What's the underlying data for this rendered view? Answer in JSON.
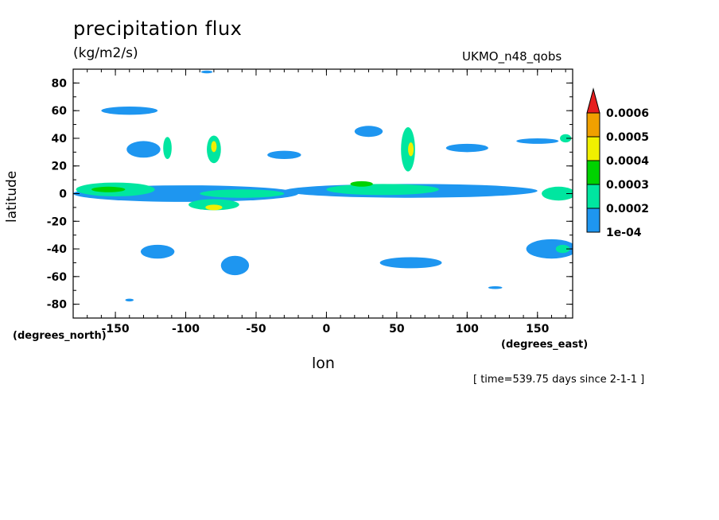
{
  "title": "precipitation flux",
  "units": "(kg/m2/s)",
  "model": "UKMO_n48_qobs",
  "y_axis": {
    "label": "latitude",
    "unit": "(degrees_north)"
  },
  "x_axis": {
    "label": "lon",
    "unit": "(degrees_east)"
  },
  "timestamp": "[ time=539.75 days since 2-1-1 ]",
  "chart_data": {
    "type": "heatmap",
    "xlim": [
      -180,
      175
    ],
    "ylim": [
      -90,
      90
    ],
    "x_ticks": [
      -150,
      -100,
      -50,
      0,
      50,
      100,
      150
    ],
    "y_ticks": [
      -80,
      -60,
      -40,
      -20,
      0,
      20,
      40,
      60,
      80
    ],
    "x_tick_labels": [
      "-150",
      "-100",
      "-50",
      "0",
      "50",
      "100",
      "150"
    ],
    "y_tick_labels": [
      "-80",
      "-60",
      "-40",
      "-20",
      "0",
      "20",
      "40",
      "60",
      "80"
    ],
    "colorbar": {
      "levels": [
        {
          "label": "1e-04",
          "color": "#1e96f0"
        },
        {
          "label": "0.0002",
          "color": "#00e6a0"
        },
        {
          "label": "0.0003",
          "color": "#00d200"
        },
        {
          "label": "0.0004",
          "color": "#f0f000"
        },
        {
          "label": "0.0005",
          "color": "#f0a000"
        },
        {
          "label": "0.0006",
          "color": "#e61e1e"
        }
      ]
    },
    "features": [
      {
        "lon": -100,
        "lat": 0,
        "rx": 80,
        "ry": 6,
        "color": "#1e96f0"
      },
      {
        "lon": -150,
        "lat": 3,
        "rx": 28,
        "ry": 5,
        "color": "#00e6a0"
      },
      {
        "lon": -155,
        "lat": 3,
        "rx": 12,
        "ry": 2,
        "color": "#00d200"
      },
      {
        "lon": -80,
        "lat": -8,
        "rx": 18,
        "ry": 4,
        "color": "#00e6a0"
      },
      {
        "lon": -80,
        "lat": -10,
        "rx": 6,
        "ry": 2,
        "color": "#f0f000"
      },
      {
        "lon": -60,
        "lat": 0,
        "rx": 30,
        "ry": 3,
        "color": "#00e6a0"
      },
      {
        "lon": 60,
        "lat": 2,
        "rx": 90,
        "ry": 5,
        "color": "#1e96f0"
      },
      {
        "lon": 40,
        "lat": 3,
        "rx": 40,
        "ry": 4,
        "color": "#00e6a0"
      },
      {
        "lon": 25,
        "lat": 7,
        "rx": 8,
        "ry": 2,
        "color": "#00d200"
      },
      {
        "lon": 165,
        "lat": 0,
        "rx": 12,
        "ry": 5,
        "color": "#00e6a0"
      },
      {
        "lon": -140,
        "lat": 60,
        "rx": 20,
        "ry": 3,
        "color": "#1e96f0"
      },
      {
        "lon": -130,
        "lat": 32,
        "rx": 12,
        "ry": 6,
        "color": "#1e96f0"
      },
      {
        "lon": -113,
        "lat": 33,
        "rx": 3,
        "ry": 8,
        "color": "#00e6a0"
      },
      {
        "lon": -80,
        "lat": 32,
        "rx": 5,
        "ry": 10,
        "color": "#00e6a0"
      },
      {
        "lon": -80,
        "lat": 34,
        "rx": 2,
        "ry": 4,
        "color": "#f0f000"
      },
      {
        "lon": -30,
        "lat": 28,
        "rx": 12,
        "ry": 3,
        "color": "#1e96f0"
      },
      {
        "lon": 58,
        "lat": 32,
        "rx": 5,
        "ry": 16,
        "color": "#00e6a0"
      },
      {
        "lon": 60,
        "lat": 32,
        "rx": 2,
        "ry": 5,
        "color": "#f0f000"
      },
      {
        "lon": 30,
        "lat": 45,
        "rx": 10,
        "ry": 4,
        "color": "#1e96f0"
      },
      {
        "lon": 100,
        "lat": 33,
        "rx": 15,
        "ry": 3,
        "color": "#1e96f0"
      },
      {
        "lon": -120,
        "lat": -42,
        "rx": 12,
        "ry": 5,
        "color": "#1e96f0"
      },
      {
        "lon": -65,
        "lat": -52,
        "rx": 10,
        "ry": 7,
        "color": "#1e96f0"
      },
      {
        "lon": 60,
        "lat": -50,
        "rx": 22,
        "ry": 4,
        "color": "#1e96f0"
      },
      {
        "lon": 160,
        "lat": -40,
        "rx": 18,
        "ry": 7,
        "color": "#1e96f0"
      },
      {
        "lon": 168,
        "lat": -40,
        "rx": 5,
        "ry": 3,
        "color": "#00e6a0"
      },
      {
        "lon": 170,
        "lat": 40,
        "rx": 4,
        "ry": 3,
        "color": "#00e6a0"
      },
      {
        "lon": 150,
        "lat": 38,
        "rx": 15,
        "ry": 2,
        "color": "#1e96f0"
      },
      {
        "lon": 120,
        "lat": -68,
        "rx": 5,
        "ry": 1,
        "color": "#1e96f0"
      },
      {
        "lon": -140,
        "lat": -77,
        "rx": 3,
        "ry": 1,
        "color": "#1e96f0"
      },
      {
        "lon": -85,
        "lat": 88,
        "rx": 4,
        "ry": 1,
        "color": "#1e96f0"
      }
    ]
  }
}
